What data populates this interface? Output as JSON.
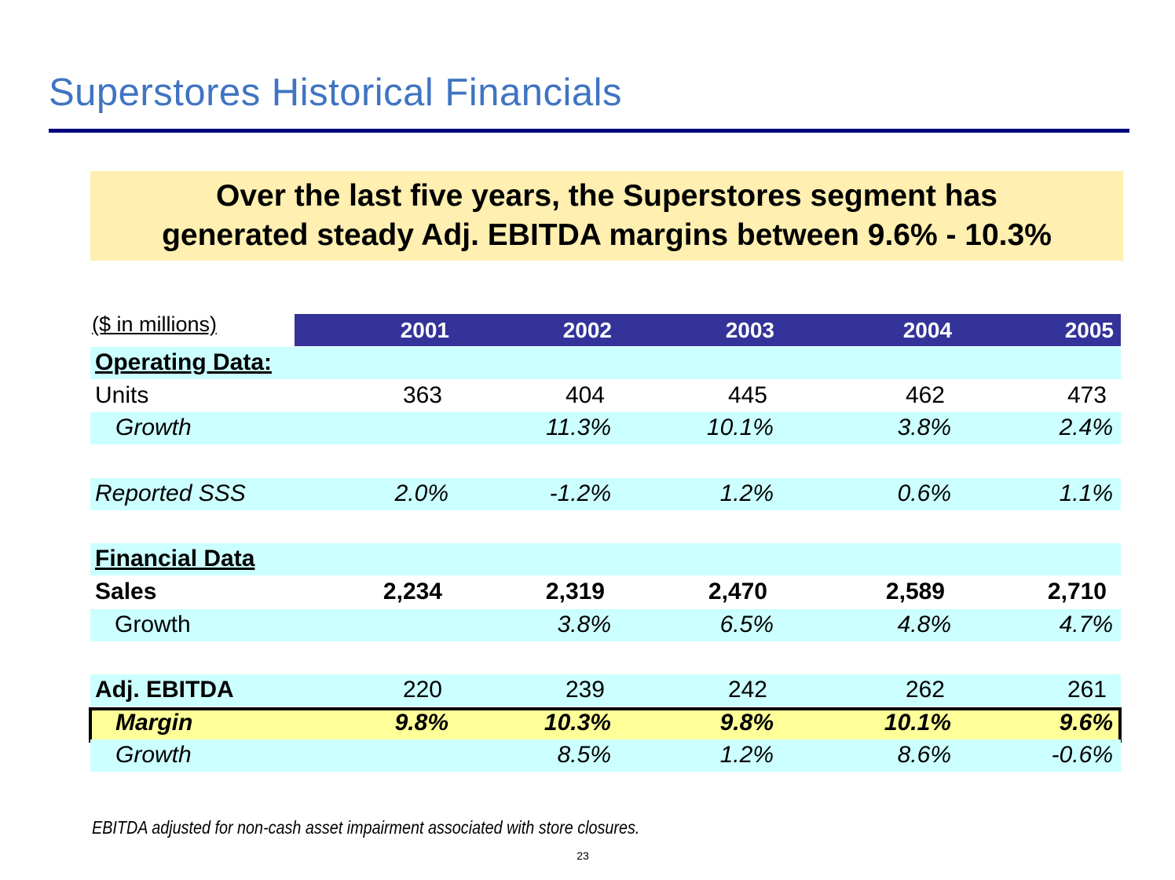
{
  "header": {
    "title": "Superstores Historical Financials"
  },
  "callout": {
    "lines": [
      "Over the last five years, the Superstores segment has",
      "generated steady Adj. EBITDA margins between 9.6% - 10.3%"
    ]
  },
  "table": {
    "unit_label": "($ in millions)",
    "years": [
      "2001",
      "2002",
      "2003",
      "2004",
      "2005"
    ],
    "groups": [
      [
        {
          "label": "Operating Data:"
        },
        {
          "label": "Units",
          "values": [
            "363",
            "404",
            "445",
            "462",
            "473"
          ]
        },
        {
          "label": "Growth",
          "values": [
            null,
            "11.3%",
            "10.1%",
            "3.8%",
            "2.4%"
          ]
        }
      ],
      [
        {
          "label": "Reported SSS",
          "values": [
            "2.0%",
            "-1.2%",
            "1.2%",
            "0.6%",
            "1.1%"
          ]
        }
      ],
      [
        {
          "label": "Financial Data"
        },
        {
          "label": "Sales",
          "values": [
            "2,234",
            "2,319",
            "2,470",
            "2,589",
            "2,710"
          ]
        },
        {
          "label": "Growth",
          "values": [
            null,
            "3.8%",
            "6.5%",
            "4.8%",
            "4.7%"
          ]
        }
      ],
      [
        {
          "label": "Adj. EBITDA",
          "values": [
            "220",
            "239",
            "242",
            "262",
            "261"
          ]
        },
        {
          "label": "Margin",
          "values": [
            "9.8%",
            "10.3%",
            "9.8%",
            "10.1%",
            "9.6%"
          ]
        },
        {
          "label": "Growth",
          "values": [
            null,
            "8.5%",
            "1.2%",
            "8.6%",
            "-0.6%"
          ]
        }
      ]
    ]
  },
  "footnote": "EBITDA adjusted for non-cash asset impairment associated with store closures.",
  "page_number": "23"
}
